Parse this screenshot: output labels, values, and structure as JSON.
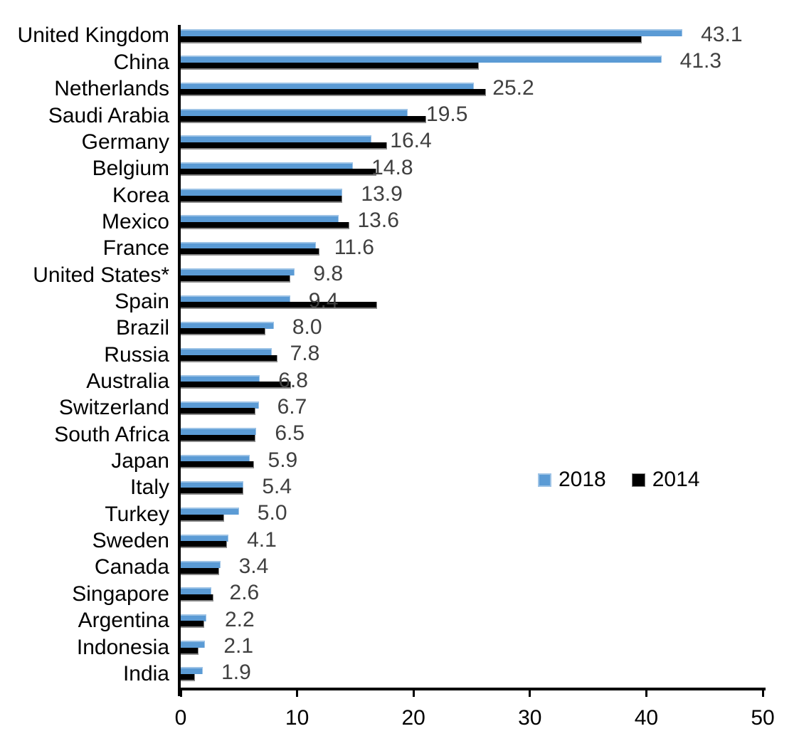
{
  "chart_data": {
    "type": "bar",
    "orientation": "horizontal",
    "title": "",
    "xlabel": "",
    "ylabel": "",
    "xlim": [
      0,
      50
    ],
    "x_ticks": [
      "0",
      "10",
      "20",
      "30",
      "40",
      "50"
    ],
    "grid": false,
    "legend_position": "middle-right",
    "categories": [
      "United Kingdom",
      "China",
      "Netherlands",
      "Saudi Arabia",
      "Germany",
      "Belgium",
      "Korea",
      "Mexico",
      "France",
      "United States*",
      "Spain",
      "Brazil",
      "Russia",
      "Australia",
      "Switzerland",
      "South Africa",
      "Japan",
      "Italy",
      "Turkey",
      "Sweden",
      "Canada",
      "Singapore",
      "Argentina",
      "Indonesia",
      "India"
    ],
    "series": [
      {
        "name": "2018",
        "color": "#5B9BD5",
        "values": [
          43.1,
          41.3,
          25.2,
          19.5,
          16.4,
          14.8,
          13.9,
          13.6,
          11.6,
          9.8,
          9.4,
          8.0,
          7.8,
          6.8,
          6.7,
          6.5,
          5.9,
          5.4,
          5.0,
          4.1,
          3.4,
          2.6,
          2.2,
          2.1,
          1.9
        ],
        "data_labels": [
          "43.1",
          "41.3",
          "25.2",
          "19.5",
          "16.4",
          "14.8",
          "13.9",
          "13.6",
          "11.6",
          "9.8",
          "9.4",
          "8.0",
          "7.8",
          "6.8",
          "6.7",
          "6.5",
          "5.9",
          "5.4",
          "5.0",
          "4.1",
          "3.4",
          "2.6",
          "2.2",
          "2.1",
          "1.9"
        ]
      },
      {
        "name": "2014",
        "color": "#000000",
        "values": [
          39.6,
          25.6,
          26.2,
          21.1,
          17.7,
          16.8,
          13.9,
          14.5,
          11.9,
          9.4,
          16.9,
          7.3,
          8.3,
          9.5,
          6.4,
          6.4,
          6.3,
          5.4,
          3.7,
          4.0,
          3.3,
          2.8,
          2.0,
          1.5,
          1.2
        ]
      }
    ],
    "value_label_color": "#404040",
    "axis_color": "#000000"
  }
}
